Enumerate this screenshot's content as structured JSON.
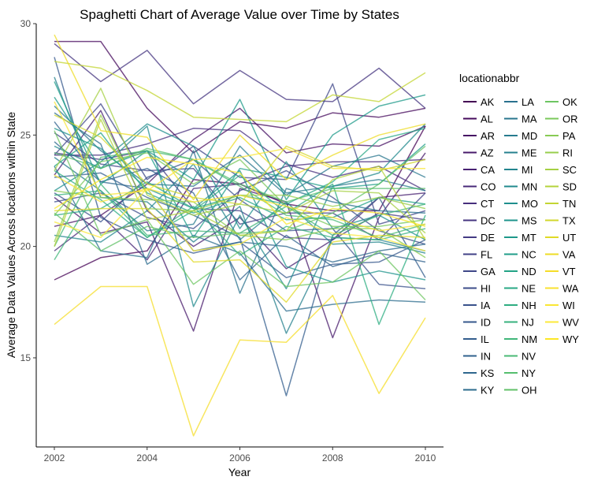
{
  "chart_data": {
    "type": "line",
    "title": "Spaghetti Chart of Average Value over Time by States",
    "xlabel": "Year",
    "ylabel": "Average Data Values Across locations within State",
    "xlim": [
      2002,
      2010
    ],
    "ylim": [
      11,
      30
    ],
    "x_ticks": [
      2002,
      2004,
      2006,
      2008,
      2010
    ],
    "y_ticks": [
      15,
      20,
      25,
      30
    ],
    "grid": false,
    "legend_title": "locationabbr",
    "legend_position": "right",
    "x": [
      2002,
      2003,
      2004,
      2005,
      2006,
      2007,
      2008,
      2009,
      2010
    ],
    "series": [
      {
        "name": "AK",
        "color": "#440154",
        "values": [
          18.5,
          19.5,
          19.8,
          23.0,
          22.8,
          21.9,
          21.6,
          21.6,
          25.4
        ]
      },
      {
        "name": "AL",
        "color": "#450a5c",
        "values": [
          29.2,
          29.2,
          26.2,
          24.2,
          25.6,
          25.3,
          26.0,
          25.8,
          26.2
        ]
      },
      {
        "name": "AR",
        "color": "#471264",
        "values": [
          20.9,
          21.4,
          22.8,
          24.8,
          26.2,
          24.2,
          24.6,
          24.5,
          25.4
        ]
      },
      {
        "name": "AZ",
        "color": "#471a6b",
        "values": [
          22.2,
          20.6,
          21.1,
          16.2,
          22.6,
          22.0,
          15.9,
          21.3,
          24.2
        ]
      },
      {
        "name": "CA",
        "color": "#482172",
        "values": [
          23.2,
          26.1,
          21.6,
          20.0,
          21.3,
          19.0,
          20.3,
          22.2,
          22.4
        ]
      },
      {
        "name": "CO",
        "color": "#482878",
        "values": [
          19.8,
          21.4,
          19.4,
          22.6,
          22.8,
          23.6,
          23.8,
          23.8,
          23.9
        ]
      },
      {
        "name": "CT",
        "color": "#472f7d",
        "values": [
          24.1,
          24.1,
          24.6,
          25.3,
          25.2,
          23.7,
          23.1,
          23.6,
          22.5
        ]
      },
      {
        "name": "DC",
        "color": "#463580",
        "values": [
          29.1,
          27.4,
          28.8,
          26.4,
          27.9,
          26.6,
          26.5,
          28.0,
          26.2
        ]
      },
      {
        "name": "DE",
        "color": "#443b84",
        "values": [
          24.2,
          23.9,
          24.3,
          21.7,
          21.6,
          20.4,
          20.3,
          21.5,
          21.2
        ]
      },
      {
        "name": "FL",
        "color": "#424186",
        "values": [
          25.1,
          23.7,
          23.4,
          23.5,
          21.0,
          21.5,
          21.5,
          20.3,
          22.4
        ]
      },
      {
        "name": "GA",
        "color": "#3f4788",
        "values": [
          24.1,
          26.4,
          23.0,
          24.5,
          23.1,
          23.0,
          27.3,
          21.0,
          21.6
        ]
      },
      {
        "name": "HI",
        "color": "#3c4d8a",
        "values": [
          22.0,
          22.4,
          21.3,
          20.8,
          22.5,
          23.4,
          22.2,
          20.7,
          20.1
        ]
      },
      {
        "name": "IA",
        "color": "#39528b",
        "values": [
          22.4,
          21.1,
          23.1,
          23.9,
          22.1,
          20.7,
          20.8,
          18.3,
          18.1
        ]
      },
      {
        "name": "ID",
        "color": "#36588c",
        "values": [
          28.5,
          21.3,
          20.3,
          19.7,
          20.2,
          18.6,
          19.2,
          19.3,
          20.3
        ]
      },
      {
        "name": "IL",
        "color": "#335d8d",
        "values": [
          23.1,
          23.3,
          22.2,
          21.4,
          20.4,
          13.3,
          20.5,
          22.2,
          18.6
        ]
      },
      {
        "name": "IN",
        "color": "#30628d",
        "values": [
          25.6,
          22.9,
          23.5,
          22.4,
          18.5,
          20.5,
          19.1,
          19.7,
          19.3
        ]
      },
      {
        "name": "KS",
        "color": "#2e678e",
        "values": [
          24.7,
          22.9,
          22.6,
          19.8,
          20.2,
          20.0,
          19.3,
          19.8,
          20.1
        ]
      },
      {
        "name": "KY",
        "color": "#2c6c8e",
        "values": [
          26.0,
          24.6,
          19.2,
          20.5,
          19.7,
          17.1,
          17.4,
          17.6,
          17.5
        ]
      },
      {
        "name": "LA",
        "color": "#2a718e",
        "values": [
          23.6,
          19.8,
          19.5,
          24.3,
          17.9,
          22.6,
          22.0,
          21.6,
          21.5
        ]
      },
      {
        "name": "MA",
        "color": "#28768e",
        "values": [
          26.3,
          24.3,
          22.8,
          22.7,
          24.1,
          22.3,
          23.6,
          24.1,
          23.1
        ]
      },
      {
        "name": "MD",
        "color": "#277b8e",
        "values": [
          24.0,
          22.5,
          20.7,
          21.0,
          24.5,
          22.4,
          22.7,
          23.0,
          22.5
        ]
      },
      {
        "name": "ME",
        "color": "#25808e",
        "values": [
          27.6,
          22.2,
          22.0,
          20.2,
          21.8,
          16.1,
          20.4,
          20.3,
          19.8
        ]
      },
      {
        "name": "MI",
        "color": "#23858e",
        "values": [
          20.5,
          20.2,
          21.6,
          23.7,
          20.3,
          22.0,
          20.1,
          20.2,
          19.7
        ]
      },
      {
        "name": "MN",
        "color": "#218a8d",
        "values": [
          24.5,
          23.5,
          25.4,
          17.3,
          21.4,
          18.1,
          22.7,
          23.3,
          25.5
        ]
      },
      {
        "name": "MO",
        "color": "#1f8f8d",
        "values": [
          22.5,
          23.8,
          25.5,
          24.5,
          20.8,
          23.8,
          20.8,
          21.4,
          20.3
        ]
      },
      {
        "name": "MS",
        "color": "#1f948c",
        "values": [
          25.3,
          24.4,
          22.6,
          21.7,
          23.4,
          19.1,
          18.4,
          18.9,
          18.5
        ]
      },
      {
        "name": "MT",
        "color": "#1e998a",
        "values": [
          26.7,
          23.5,
          24.3,
          23.0,
          26.6,
          22.1,
          25.0,
          26.3,
          26.8
        ]
      },
      {
        "name": "NC",
        "color": "#209e89",
        "values": [
          27.4,
          22.8,
          24.3,
          20.4,
          23.5,
          23.1,
          22.6,
          22.8,
          24.6
        ]
      },
      {
        "name": "ND",
        "color": "#23a386",
        "values": [
          23.6,
          25.1,
          22.4,
          21.5,
          22.2,
          21.2,
          21.3,
          22.2,
          21.9
        ]
      },
      {
        "name": "NE",
        "color": "#28a884",
        "values": [
          21.4,
          21.7,
          22.9,
          21.7,
          22.3,
          21.9,
          22.9,
          24.8,
          25.3
        ]
      },
      {
        "name": "NH",
        "color": "#2ead81",
        "values": [
          23.4,
          22.1,
          20.4,
          21.6,
          23.2,
          21.5,
          22.8,
          16.5,
          21.4
        ]
      },
      {
        "name": "NJ",
        "color": "#37b17d",
        "values": [
          22.3,
          22.5,
          20.4,
          21.8,
          19.6,
          20.9,
          20.4,
          20.3,
          20.8
        ]
      },
      {
        "name": "NM",
        "color": "#40b679",
        "values": [
          19.4,
          22.8,
          20.5,
          20.7,
          20.6,
          21.8,
          20.5,
          21.4,
          21.9
        ]
      },
      {
        "name": "NV",
        "color": "#4aba74",
        "values": [
          20.0,
          24.0,
          24.3,
          23.9,
          22.7,
          21.4,
          21.2,
          20.4,
          21.0
        ]
      },
      {
        "name": "NY",
        "color": "#55be6e",
        "values": [
          24.2,
          23.5,
          24.4,
          23.9,
          22.8,
          22.0,
          22.6,
          22.6,
          22.6
        ]
      },
      {
        "name": "OH",
        "color": "#61c168",
        "values": [
          21.5,
          19.8,
          20.9,
          20.4,
          20.6,
          20.7,
          21.5,
          22.8,
          24.5
        ]
      },
      {
        "name": "OK",
        "color": "#6dc562",
        "values": [
          25.2,
          20.5,
          21.2,
          18.3,
          19.8,
          18.2,
          18.4,
          19.8,
          17.6
        ]
      },
      {
        "name": "OR",
        "color": "#7ac85b",
        "values": [
          21.4,
          23.8,
          24.2,
          22.8,
          23.9,
          21.8,
          20.9,
          20.9,
          21.2
        ]
      },
      {
        "name": "PA",
        "color": "#88cb54",
        "values": [
          22.5,
          22.2,
          22.1,
          22.0,
          20.5,
          20.3,
          20.8,
          20.8,
          19.5
        ]
      },
      {
        "name": "RI",
        "color": "#97ce4c",
        "values": [
          20.2,
          25.9,
          21.7,
          21.6,
          22.3,
          22.3,
          21.8,
          22.2,
          21.7
        ]
      },
      {
        "name": "SC",
        "color": "#a5d043",
        "values": [
          23.4,
          27.1,
          22.3,
          21.4,
          21.9,
          21.5,
          22.5,
          22.4,
          20.6
        ]
      },
      {
        "name": "SD",
        "color": "#b4d33b",
        "values": [
          20.0,
          25.7,
          21.2,
          21.6,
          20.5,
          20.7,
          23.0,
          23.6,
          20.3
        ]
      },
      {
        "name": "TN",
        "color": "#c3d533",
        "values": [
          28.3,
          28.0,
          27.0,
          25.8,
          25.7,
          25.6,
          26.8,
          26.5,
          27.8
        ]
      },
      {
        "name": "TX",
        "color": "#d2d72c",
        "values": [
          25.9,
          24.9,
          22.8,
          22.2,
          21.9,
          24.5,
          23.6,
          23.4,
          23.9
        ]
      },
      {
        "name": "UT",
        "color": "#e0da26",
        "values": [
          21.6,
          21.7,
          21.7,
          19.3,
          19.4,
          17.5,
          20.2,
          20.5,
          20.4
        ]
      },
      {
        "name": "VA",
        "color": "#eddc25",
        "values": [
          29.5,
          25.2,
          24.9,
          22.1,
          25.0,
          23.0,
          24.1,
          25.0,
          25.5
        ]
      },
      {
        "name": "VT",
        "color": "#f5dd29",
        "values": [
          16.5,
          18.2,
          18.2,
          11.5,
          15.8,
          15.7,
          17.8,
          13.4,
          16.8
        ]
      },
      {
        "name": "WA",
        "color": "#f8e22f",
        "values": [
          23.2,
          22.0,
          22.6,
          22.0,
          22.3,
          21.8,
          21.3,
          20.7,
          21.0
        ]
      },
      {
        "name": "WI",
        "color": "#fae634",
        "values": [
          26.5,
          22.3,
          22.5,
          23.9,
          24.0,
          24.4,
          23.5,
          23.5,
          23.5
        ]
      },
      {
        "name": "WV",
        "color": "#fce93a",
        "values": [
          21.1,
          20.4,
          22.6,
          19.8,
          20.1,
          21.3,
          20.6,
          20.4,
          19.8
        ]
      },
      {
        "name": "WY",
        "color": "#fde725",
        "values": [
          21.7,
          23.0,
          24.0,
          23.7,
          23.3,
          21.0,
          21.7,
          21.5,
          20.9
        ]
      }
    ]
  }
}
